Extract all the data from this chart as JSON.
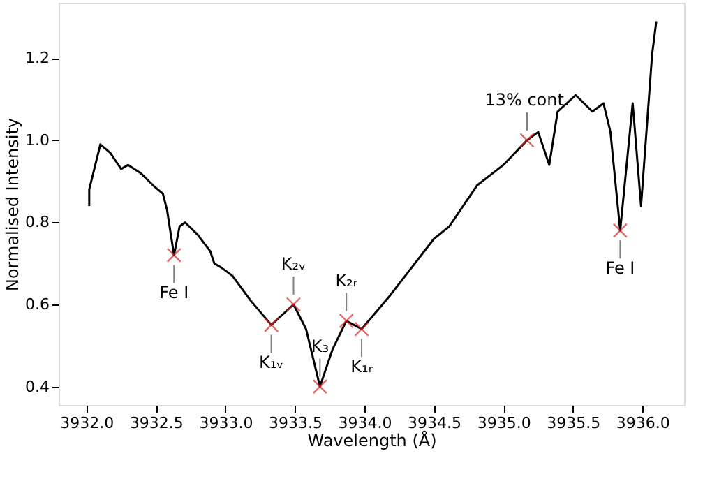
{
  "chart_data": {
    "type": "line",
    "xlabel": "Wavelength (Å)",
    "ylabel": "Normalised Intensity",
    "xlim": [
      3931.8,
      3936.3
    ],
    "ylim": [
      0.355,
      1.335
    ],
    "xticks": [
      {
        "value": 3932.0,
        "label": "3932.0"
      },
      {
        "value": 3932.5,
        "label": "3932.5"
      },
      {
        "value": 3933.0,
        "label": "3933.0"
      },
      {
        "value": 3933.5,
        "label": "3933.5"
      },
      {
        "value": 3934.0,
        "label": "3934.0"
      },
      {
        "value": 3934.5,
        "label": "3934.5"
      },
      {
        "value": 3935.0,
        "label": "3935.0"
      },
      {
        "value": 3935.5,
        "label": "3935.5"
      },
      {
        "value": 3936.0,
        "label": "3936.0"
      }
    ],
    "yticks": [
      {
        "value": 0.4,
        "label": "0.4"
      },
      {
        "value": 0.6,
        "label": "0.6"
      },
      {
        "value": 0.8,
        "label": "0.8"
      },
      {
        "value": 1.0,
        "label": "1.0"
      },
      {
        "value": 1.2,
        "label": "1.2"
      }
    ],
    "grid": false,
    "series": [
      {
        "color": "#000000",
        "line_style": "solid",
        "marker": "none",
        "x": [
          3932.02,
          3932.02,
          3932.1,
          3932.17,
          3932.25,
          3932.3,
          3932.39,
          3932.48,
          3932.55,
          3932.58,
          3932.63,
          3932.67,
          3932.71,
          3932.8,
          3932.89,
          3932.92,
          3932.97,
          3933.05,
          3933.18,
          3933.33,
          3933.49,
          3933.58,
          3933.68,
          3933.77,
          3933.87,
          3933.98,
          3934.18,
          3934.34,
          3934.5,
          3934.61,
          3934.81,
          3935.0,
          3935.17,
          3935.25,
          3935.33,
          3935.39,
          3935.52,
          3935.64,
          3935.72,
          3935.77,
          3935.84,
          3935.93,
          3935.99,
          3936.07,
          3936.1
        ],
        "values": [
          0.84,
          0.88,
          0.99,
          0.97,
          0.93,
          0.94,
          0.92,
          0.89,
          0.87,
          0.83,
          0.72,
          0.79,
          0.8,
          0.77,
          0.73,
          0.7,
          0.69,
          0.67,
          0.61,
          0.55,
          0.6,
          0.54,
          0.4,
          0.49,
          0.56,
          0.54,
          0.62,
          0.69,
          0.76,
          0.79,
          0.89,
          0.94,
          1.0,
          1.02,
          0.94,
          1.07,
          1.11,
          1.07,
          1.09,
          1.02,
          0.78,
          1.09,
          0.84,
          1.21,
          1.29
        ]
      },
      {
        "type": "scatter",
        "color": "#d62728",
        "marker": "cross",
        "x": [
          3932.63,
          3933.33,
          3933.49,
          3933.68,
          3933.87,
          3933.98,
          3935.17,
          3935.84
        ],
        "values": [
          0.72,
          0.55,
          0.6,
          0.4,
          0.56,
          0.54,
          1.0,
          0.78
        ]
      }
    ],
    "annotations": [
      {
        "text": "Fe I",
        "x": 3932.63,
        "y": 0.72
      },
      {
        "text": "K₁ᵥ",
        "x": 3933.33,
        "y": 0.55
      },
      {
        "text": "K₂ᵥ",
        "x": 3933.49,
        "y": 0.6
      },
      {
        "text": "K₃",
        "x": 3933.68,
        "y": 0.4
      },
      {
        "text": "K₂ᵣ",
        "x": 3933.87,
        "y": 0.56
      },
      {
        "text": "K₁ᵣ",
        "x": 3933.98,
        "y": 0.54
      },
      {
        "text": "13% cont.",
        "x": 3935.17,
        "y": 1.0
      },
      {
        "text": "Fe I",
        "x": 3935.84,
        "y": 0.78
      }
    ]
  }
}
